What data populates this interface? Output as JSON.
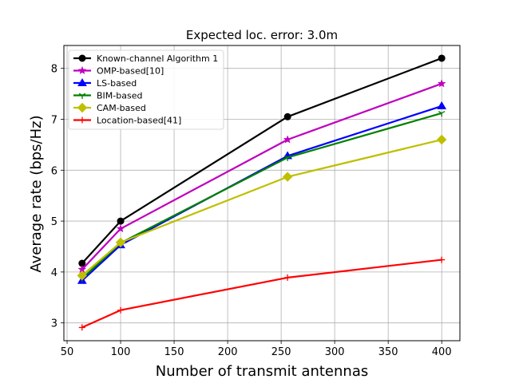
{
  "chart_data": {
    "type": "line",
    "title": "Expected loc. error: 3.0m",
    "xlabel": "Number of transmit antennas",
    "ylabel": "Average rate (bps/Hz)",
    "xlim": [
      47,
      417
    ],
    "ylim": [
      2.65,
      8.45
    ],
    "xticks": [
      50,
      100,
      150,
      200,
      250,
      300,
      350,
      400
    ],
    "yticks": [
      3,
      4,
      5,
      6,
      7,
      8
    ],
    "grid": true,
    "legend_position": "top-left",
    "x": [
      64,
      100,
      256,
      400
    ],
    "series": [
      {
        "name": "Known-channel Algorithm 1",
        "values": [
          4.17,
          5.0,
          7.05,
          8.2
        ],
        "color": "#000000",
        "marker": "circle"
      },
      {
        "name": "OMP-based[10]",
        "values": [
          4.05,
          4.85,
          6.6,
          7.7
        ],
        "color": "#bf00bf",
        "marker": "star"
      },
      {
        "name": "LS-based",
        "values": [
          3.83,
          4.53,
          6.28,
          7.26
        ],
        "color": "#0000ff",
        "marker": "triangle"
      },
      {
        "name": "BIM-based",
        "values": [
          3.87,
          4.57,
          6.25,
          7.12
        ],
        "color": "#008000",
        "marker": "tri"
      },
      {
        "name": "CAM-based",
        "values": [
          3.93,
          4.58,
          5.87,
          6.6
        ],
        "color": "#bfbf00",
        "marker": "diamond"
      },
      {
        "name": "Location-based[41]",
        "values": [
          2.91,
          3.25,
          3.89,
          4.24
        ],
        "color": "#ff0000",
        "marker": "plus"
      }
    ]
  }
}
